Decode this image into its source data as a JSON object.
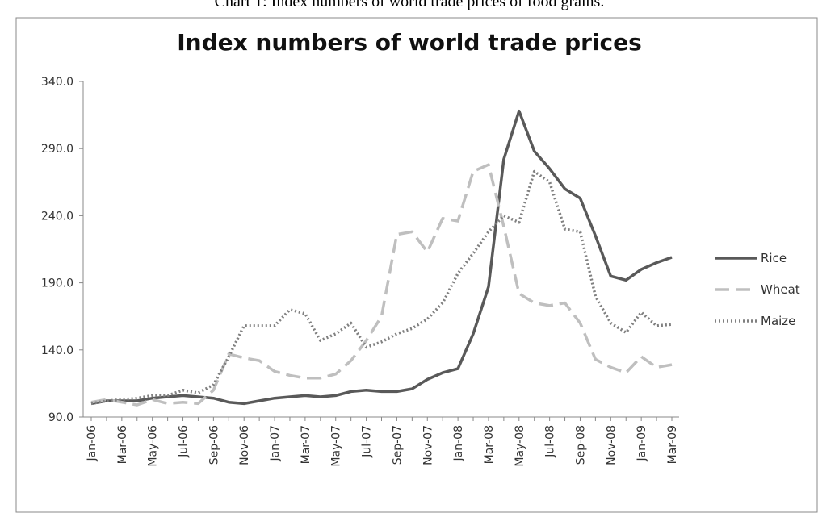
{
  "chart_data": {
    "type": "line",
    "caption": "Chart 1: Index numbers of world trade prices of food grains.",
    "title": "Index numbers of world trade prices",
    "categories": [
      "Jan-06",
      null,
      "Mar-06",
      null,
      "May-06",
      null,
      "Jul-06",
      null,
      "Sep-06",
      null,
      "Nov-06",
      null,
      "Jan-07",
      null,
      "Mar-07",
      null,
      "May-07",
      null,
      "Jul-07",
      null,
      "Sep-07",
      null,
      "Nov-07",
      null,
      "Jan-08",
      null,
      "Mar-08",
      null,
      "May-08",
      null,
      "Jul-08",
      null,
      "Sep-08",
      null,
      "Nov-08",
      null,
      "Jan-09",
      null,
      "Mar-09"
    ],
    "series": [
      {
        "name": "Rice",
        "color": "#595959",
        "dash": "solid",
        "values": [
          100,
          102,
          102,
          102,
          104,
          105,
          106,
          105,
          104,
          101,
          100,
          102,
          104,
          105,
          106,
          105,
          106,
          109,
          110,
          109,
          109,
          111,
          118,
          123,
          126,
          152,
          187,
          282,
          318,
          288,
          275,
          260,
          253,
          225,
          195,
          192,
          200,
          205,
          209
        ]
      },
      {
        "name": "Wheat",
        "color": "#bfbfbf",
        "dash": "dashed",
        "values": [
          101,
          103,
          101,
          99,
          103,
          100,
          101,
          100,
          110,
          137,
          134,
          132,
          124,
          121,
          119,
          119,
          122,
          132,
          147,
          165,
          226,
          228,
          213,
          238,
          236,
          273,
          278,
          232,
          182,
          175,
          173,
          175,
          160,
          133,
          127,
          123,
          135,
          127,
          129
        ]
      },
      {
        "name": "Maize",
        "color": "#808080",
        "dash": "dotted",
        "values": [
          100,
          102,
          103,
          104,
          106,
          106,
          110,
          108,
          114,
          135,
          158,
          158,
          158,
          170,
          167,
          147,
          152,
          160,
          142,
          146,
          152,
          156,
          163,
          175,
          197,
          212,
          228,
          240,
          235,
          273,
          265,
          230,
          228,
          180,
          160,
          153,
          168,
          158,
          159
        ]
      }
    ],
    "ylim": [
      90,
      340
    ],
    "yticks": [
      {
        "value": 90,
        "label": "90.0"
      },
      {
        "value": 140,
        "label": "140.0"
      },
      {
        "value": 190,
        "label": "190.0"
      },
      {
        "value": 240,
        "label": "240.0"
      },
      {
        "value": 290,
        "label": "290.0"
      },
      {
        "value": 340,
        "label": "340.0"
      }
    ],
    "legend": "right"
  }
}
